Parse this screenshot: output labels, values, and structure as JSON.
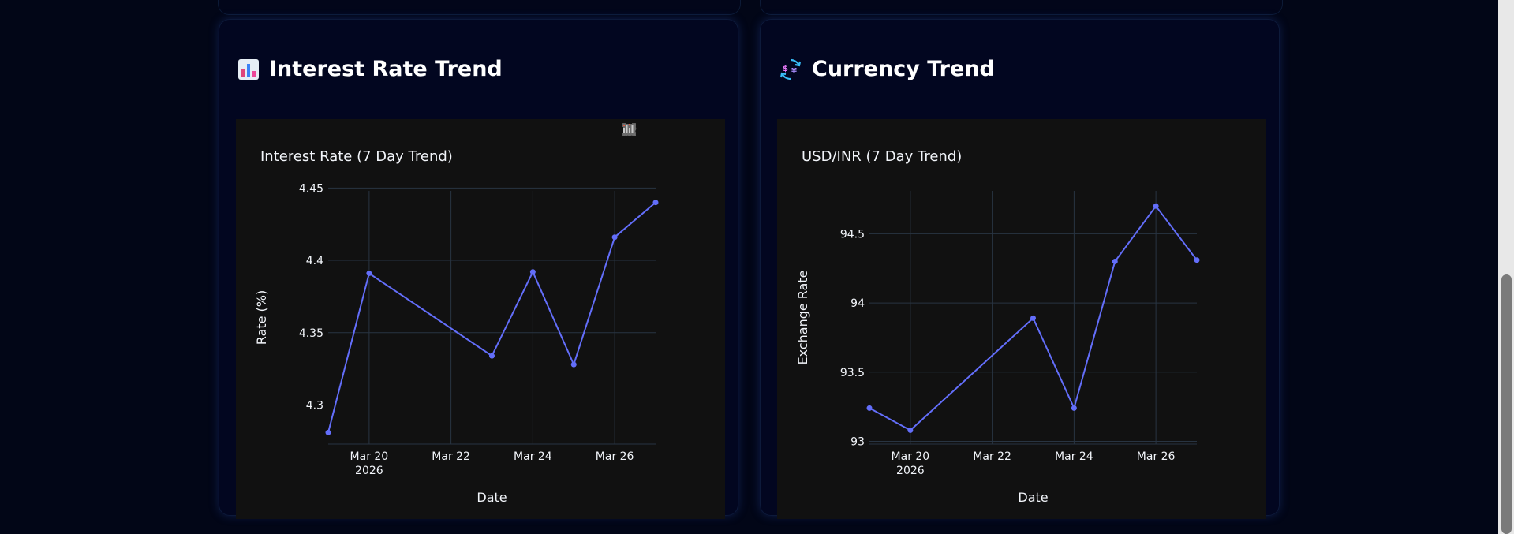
{
  "cards": [
    {
      "heading": "Interest Rate Trend",
      "heading_icon": "bar-chart-icon",
      "chart_data": {
        "type": "line",
        "title": "Interest Rate (7 Day Trend)",
        "xlabel": "Date",
        "ylabel": "Rate (%)",
        "x": [
          "2026-03-19",
          "2026-03-20",
          "2026-03-23",
          "2026-03-24",
          "2026-03-25",
          "2026-03-26",
          "2026-03-27"
        ],
        "y": [
          4.281,
          4.391,
          4.334,
          4.392,
          4.328,
          4.416,
          4.44
        ],
        "xlim": [
          "2026-03-19",
          "2026-03-27"
        ],
        "ylim": [
          4.273,
          4.448
        ],
        "yticks": [
          4.3,
          4.35,
          4.4,
          4.45
        ],
        "ytick_labels": [
          "4.3",
          "4.35",
          "4.4",
          "4.45"
        ],
        "xticks": [
          "2026-03-20",
          "2026-03-22",
          "2026-03-24",
          "2026-03-26"
        ],
        "xtick_labels": [
          "Mar 20",
          "Mar 22",
          "Mar 24",
          "Mar 26"
        ],
        "xtick_year": "2026",
        "grid": true,
        "line_color": "#636efa"
      }
    },
    {
      "heading": "Currency Trend",
      "heading_icon": "currency-exchange-icon",
      "chart_data": {
        "type": "line",
        "title": "USD/INR (7 Day Trend)",
        "xlabel": "Date",
        "ylabel": "Exchange Rate",
        "x": [
          "2026-03-19",
          "2026-03-20",
          "2026-03-23",
          "2026-03-24",
          "2026-03-25",
          "2026-03-26",
          "2026-03-27"
        ],
        "y": [
          93.24,
          93.08,
          93.89,
          93.24,
          94.3,
          94.7,
          94.31
        ],
        "xlim": [
          "2026-03-19",
          "2026-03-27"
        ],
        "ylim": [
          92.98,
          94.81
        ],
        "yticks": [
          93,
          93.5,
          94,
          94.5
        ],
        "ytick_labels": [
          "93",
          "93.5",
          "94",
          "94.5"
        ],
        "xticks": [
          "2026-03-20",
          "2026-03-22",
          "2026-03-24",
          "2026-03-26"
        ],
        "xtick_labels": [
          "Mar 20",
          "Mar 22",
          "Mar 24",
          "Mar 26"
        ],
        "xtick_year": "2026",
        "grid": true,
        "line_color": "#636efa"
      }
    }
  ],
  "modebar_icons": [
    "camera-icon",
    "zoom-icon",
    "pan-icon",
    "box-select-icon",
    "lasso-select-icon",
    "zoom-in-icon",
    "zoom-out-icon",
    "autoscale-icon",
    "reset-axes-icon",
    "plotly-logo-icon"
  ],
  "colors": {
    "page_bg": "#020617",
    "card_bg": "#020620",
    "plot_bg": "#111111",
    "grid": "#283442",
    "text": "#f2f5fa"
  }
}
